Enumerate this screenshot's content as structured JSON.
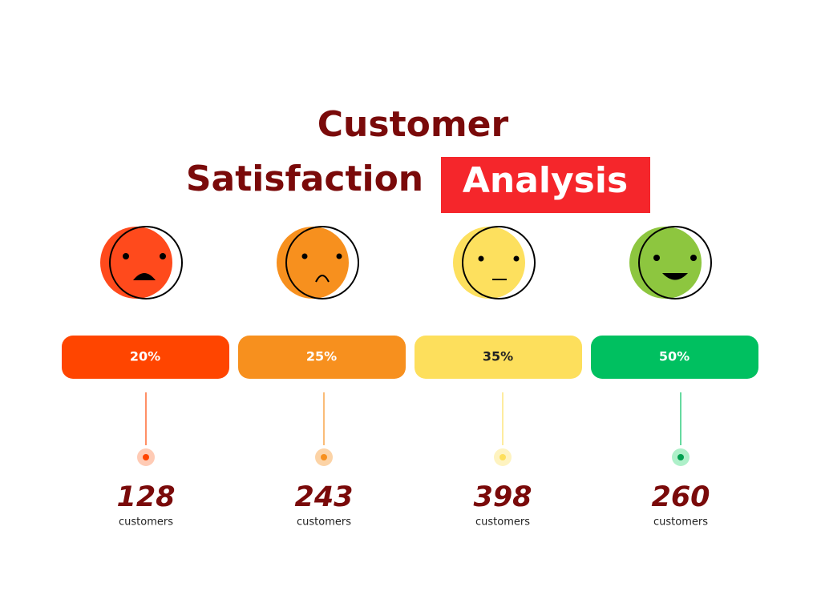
{
  "title": {
    "line1": "Customer",
    "line2": "Satisfaction",
    "highlight": "Analysis"
  },
  "items": [
    {
      "percent": "20%",
      "count": 128,
      "unit": "customers"
    },
    {
      "percent": "25%",
      "count": 243,
      "unit": "customers"
    },
    {
      "percent": "35%",
      "count": 398,
      "unit": "customers"
    },
    {
      "percent": "50%",
      "count": 260,
      "unit": "customers"
    }
  ]
}
